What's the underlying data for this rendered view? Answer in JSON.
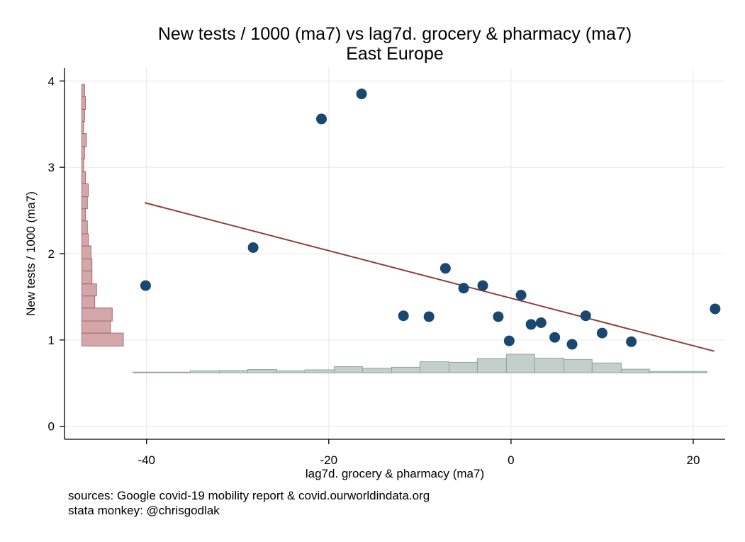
{
  "chart_data": {
    "type": "scatter",
    "title": "New tests / 1000 (ma7) vs lag7d. grocery & pharmacy (ma7)",
    "subtitle": "East Europe",
    "xlabel": "lag7d. grocery & pharmacy (ma7)",
    "ylabel": "New tests / 1000 (ma7)",
    "xlim": [
      -49,
      23.5
    ],
    "ylim": [
      -0.15,
      4.15
    ],
    "xticks": [
      "-40",
      "-20",
      "0",
      "20"
    ],
    "yticks": [
      "0",
      "1",
      "2",
      "3",
      "4"
    ],
    "grid": true,
    "colors": {
      "points": "#1a476f",
      "fit_line": "#903c3c",
      "y_hist": "#d3a7aa",
      "x_hist": "#c2cfca"
    },
    "series": [
      {
        "kind": "points",
        "x": [
          -40.1,
          -28.3,
          -20.8,
          -16.4,
          -11.8,
          -9.0,
          -7.2,
          -5.2,
          -3.1,
          -1.4,
          -0.2,
          1.1,
          2.2,
          3.3,
          4.8,
          6.7,
          8.2,
          10.0,
          13.2,
          22.4
        ],
        "y": [
          1.63,
          2.07,
          3.56,
          3.85,
          1.28,
          1.27,
          1.83,
          1.6,
          1.63,
          1.27,
          0.99,
          1.52,
          1.18,
          1.2,
          1.03,
          0.95,
          1.28,
          1.08,
          0.98,
          1.36
        ]
      },
      {
        "kind": "fit_line",
        "x": [
          -40.2,
          22.3
        ],
        "y": [
          2.59,
          0.87
        ]
      }
    ],
    "y_histogram": {
      "bins": [
        [
          0.93,
          1.08,
          4.5
        ],
        [
          1.08,
          1.22,
          3.1
        ],
        [
          1.22,
          1.37,
          3.3
        ],
        [
          1.37,
          1.51,
          1.4
        ],
        [
          1.51,
          1.65,
          1.6
        ],
        [
          1.65,
          1.8,
          1.1
        ],
        [
          1.8,
          1.94,
          1.1
        ],
        [
          1.94,
          2.09,
          1.0
        ],
        [
          2.09,
          2.23,
          0.7
        ],
        [
          2.23,
          2.38,
          0.6
        ],
        [
          2.38,
          2.52,
          0.4
        ],
        [
          2.52,
          2.66,
          0.6
        ],
        [
          2.66,
          2.81,
          0.7
        ],
        [
          2.81,
          2.95,
          0.4
        ],
        [
          2.95,
          3.1,
          0.2
        ],
        [
          3.1,
          3.24,
          0.3
        ],
        [
          3.24,
          3.39,
          0.5
        ],
        [
          3.39,
          3.53,
          0.2
        ],
        [
          3.53,
          3.67,
          0.3
        ],
        [
          3.67,
          3.82,
          0.4
        ],
        [
          3.82,
          3.96,
          0.3
        ]
      ]
    },
    "x_histogram": {
      "bins": [
        [
          -41.5,
          -38.4,
          0.1
        ],
        [
          -38.4,
          -35.2,
          0.1
        ],
        [
          -35.2,
          -32.0,
          0.3
        ],
        [
          -32.0,
          -28.9,
          0.35
        ],
        [
          -28.9,
          -25.7,
          0.5
        ],
        [
          -25.7,
          -22.6,
          0.3
        ],
        [
          -22.6,
          -19.4,
          0.45
        ],
        [
          -19.4,
          -16.3,
          0.95
        ],
        [
          -16.3,
          -13.1,
          0.7
        ],
        [
          -13.1,
          -10.0,
          0.85
        ],
        [
          -10.0,
          -6.8,
          1.7
        ],
        [
          -6.8,
          -3.7,
          1.6
        ],
        [
          -3.7,
          -0.5,
          2.2
        ],
        [
          -0.5,
          2.6,
          2.85
        ],
        [
          2.6,
          5.8,
          2.25
        ],
        [
          5.8,
          8.9,
          2.05
        ],
        [
          8.9,
          12.1,
          1.5
        ],
        [
          12.1,
          15.2,
          0.55
        ],
        [
          15.2,
          18.4,
          0.2
        ],
        [
          18.4,
          21.5,
          0.2
        ]
      ]
    }
  },
  "notes": {
    "line1": "sources: Google covid-19 mobility report & covid.ourworldindata.org",
    "line2": "stata monkey: @chrisgodlak"
  }
}
